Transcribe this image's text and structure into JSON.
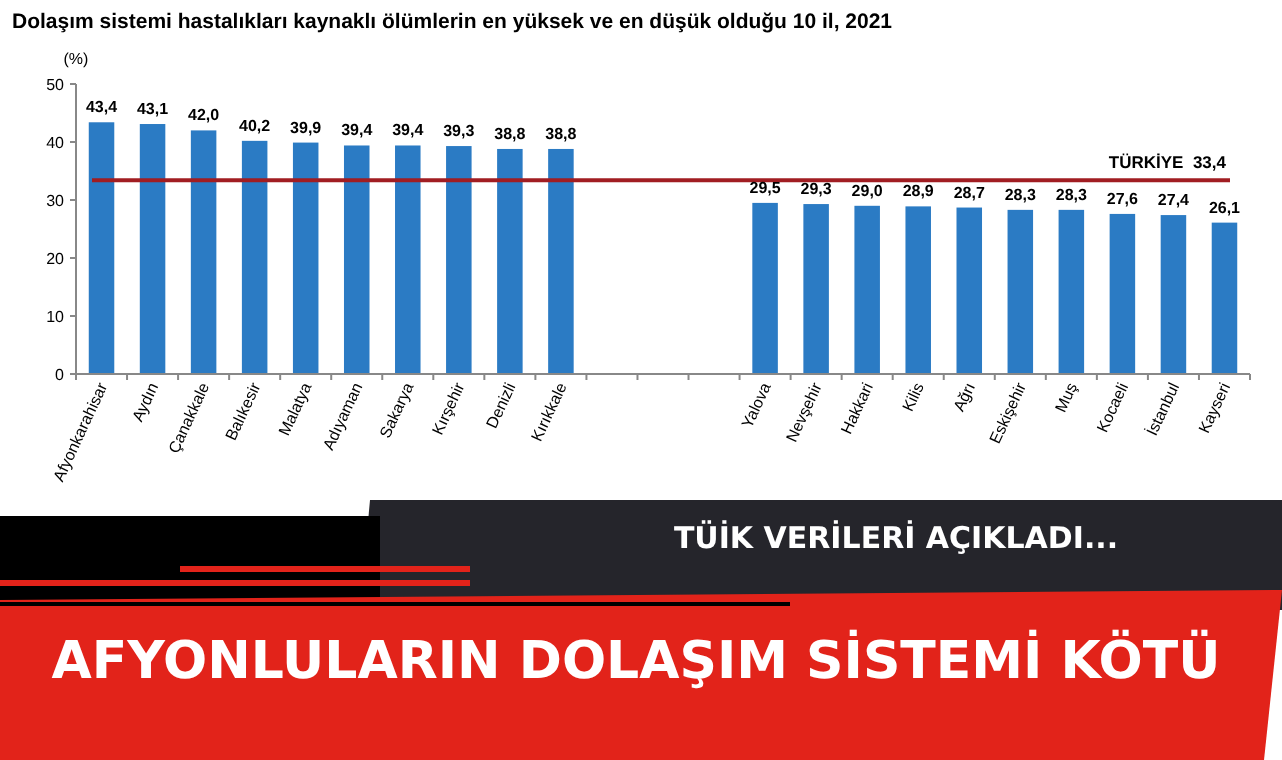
{
  "chart_data": {
    "type": "bar",
    "title": "Dolaşım sistemi hastalıkları kaynaklı ölümlerin en yüksek ve en düşük olduğu 10 il, 2021",
    "ylabel": "(%)",
    "categories": [
      "Afyonkarahisar",
      "Aydın",
      "Çanakkale",
      "Balıkesir",
      "Malatya",
      "Adıyaman",
      "Sakarya",
      "Kırşehir",
      "Denizli",
      "Kırıkkale",
      null,
      null,
      null,
      "Yalova",
      "Nevşehir",
      "Hakkari",
      "Kilis",
      "Ağrı",
      "Eskişehir",
      "Muş",
      "Kocaeli",
      "İstanbul",
      "Kayseri"
    ],
    "values": [
      43.4,
      43.1,
      42.0,
      40.2,
      39.9,
      39.4,
      39.4,
      39.3,
      38.8,
      38.8,
      null,
      null,
      null,
      29.5,
      29.3,
      29.0,
      28.9,
      28.7,
      28.3,
      28.3,
      27.6,
      27.4,
      26.1
    ],
    "value_labels": [
      "43,4",
      "43,1",
      "42,0",
      "40,2",
      "39,9",
      "39,4",
      "39,4",
      "39,3",
      "38,8",
      "38,8",
      null,
      null,
      null,
      "29,5",
      "29,3",
      "29,0",
      "28,9",
      "28,7",
      "28,3",
      "28,3",
      "27,6",
      "27,4",
      "26,1"
    ],
    "color": "#2b7bc4",
    "ylim": [
      0,
      50
    ],
    "yticks": [
      0,
      10,
      20,
      30,
      40,
      50
    ],
    "grid": false,
    "ref_lines": [
      {
        "axis": "y",
        "value": 33.4,
        "label": "TÜRKİYE  33,4",
        "color": "#a11d22"
      }
    ],
    "annotations": [
      "TÜİK VERİLERİ AÇIKLADI...",
      "AFYONLULARIN DOLAŞIM SİSTEMİ KÖTÜ"
    ]
  }
}
